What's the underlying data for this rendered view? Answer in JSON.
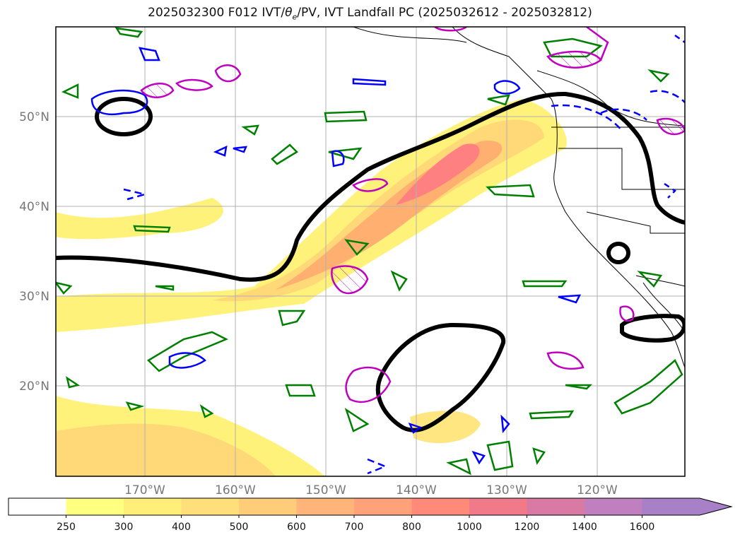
{
  "title_pre": "2025032300 F012 IVT/",
  "title_sym": "θ",
  "title_sub": "e",
  "title_post": "/PV, IVT Landfall PC (2025032612 - 2025032812)",
  "lon_labels": [
    "170°W",
    "160°W",
    "150°W",
    "140°W",
    "130°W",
    "120°W"
  ],
  "lat_labels": [
    "50°N",
    "40°N",
    "30°N",
    "20°N"
  ],
  "colorbar": {
    "labels": [
      "250",
      "300",
      "400",
      "500",
      "600",
      "700",
      "800",
      "1000",
      "1200",
      "1400",
      "1600"
    ],
    "colors": [
      "#ffffff",
      "#ffff80",
      "#ffee78",
      "#ffdf7a",
      "#ffcc7a",
      "#ffb57a",
      "#ffa27a",
      "#ff8a7a",
      "#f07a8a",
      "#d97aa5",
      "#c080c0",
      "#a880c8"
    ]
  },
  "colors": {
    "ivt_fill_low": "#ffee66",
    "ivt_fill_mid": "#ffc070",
    "ivt_fill_high": "#ff8080",
    "landfall_pc": "#000000",
    "theta_e": "#008000",
    "pv_pos": "#0000ff",
    "pv_mag": "#c000c0",
    "grid": "#b0b0b0",
    "coast": "#000000"
  }
}
